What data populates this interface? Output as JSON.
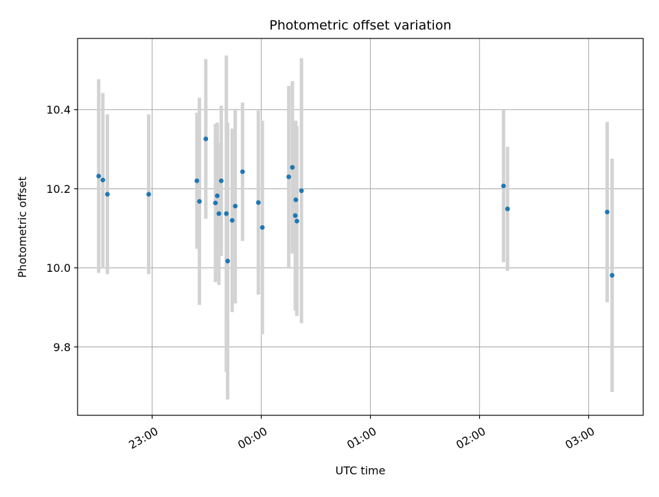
{
  "chart_data": {
    "type": "scatter",
    "title": "Photometric offset variation",
    "xlabel": "UTC time",
    "ylabel": "Photometric offset",
    "x_tick_labels": [
      "23:00",
      "00:00",
      "01:00",
      "02:00",
      "03:00"
    ],
    "x_ticks_minutes": [
      1380,
      1440,
      1500,
      1560,
      1620
    ],
    "y_ticks": [
      9.8,
      10.0,
      10.2,
      10.4
    ],
    "y_tick_labels": [
      "9.8",
      "10.0",
      "10.2",
      "10.4"
    ],
    "xlim_minutes": [
      1339,
      1650
    ],
    "ylim": [
      9.627,
      10.58
    ],
    "grid": true,
    "marker_color": "#1f77b4",
    "errorbar_color": "#d3d3d3",
    "points": [
      {
        "t": 1350.6,
        "y": 10.232,
        "err": 0.245
      },
      {
        "t": 1352.9,
        "y": 10.222,
        "err": 0.22
      },
      {
        "t": 1355.4,
        "y": 10.186,
        "err": 0.202
      },
      {
        "t": 1378.1,
        "y": 10.186,
        "err": 0.202
      },
      {
        "t": 1404.6,
        "y": 10.22,
        "err": 0.172
      },
      {
        "t": 1406.0,
        "y": 10.168,
        "err": 0.262
      },
      {
        "t": 1409.5,
        "y": 10.326,
        "err": 0.202
      },
      {
        "t": 1414.8,
        "y": 10.164,
        "err": 0.2
      },
      {
        "t": 1415.8,
        "y": 10.182,
        "err": 0.185
      },
      {
        "t": 1416.7,
        "y": 10.137,
        "err": 0.18
      },
      {
        "t": 1418.0,
        "y": 10.22,
        "err": 0.19
      },
      {
        "t": 1420.8,
        "y": 10.137,
        "err": 0.4
      },
      {
        "t": 1421.5,
        "y": 10.017,
        "err": 0.35
      },
      {
        "t": 1424.0,
        "y": 10.12,
        "err": 0.232
      },
      {
        "t": 1425.7,
        "y": 10.156,
        "err": 0.246
      },
      {
        "t": 1429.7,
        "y": 10.243,
        "err": 0.175
      },
      {
        "t": 1438.4,
        "y": 10.165,
        "err": 0.233
      },
      {
        "t": 1440.6,
        "y": 10.102,
        "err": 0.27
      },
      {
        "t": 1455.1,
        "y": 10.23,
        "err": 0.23
      },
      {
        "t": 1457.1,
        "y": 10.254,
        "err": 0.218
      },
      {
        "t": 1458.7,
        "y": 10.132,
        "err": 0.24
      },
      {
        "t": 1459.0,
        "y": 10.172,
        "err": 0.2
      },
      {
        "t": 1459.6,
        "y": 10.118,
        "err": 0.24
      },
      {
        "t": 1462.1,
        "y": 10.195,
        "err": 0.335
      },
      {
        "t": 1573.2,
        "y": 10.207,
        "err": 0.193
      },
      {
        "t": 1575.4,
        "y": 10.149,
        "err": 0.157
      },
      {
        "t": 1630.2,
        "y": 10.141,
        "err": 0.228
      },
      {
        "t": 1632.9,
        "y": 9.981,
        "err": 0.295
      }
    ]
  }
}
